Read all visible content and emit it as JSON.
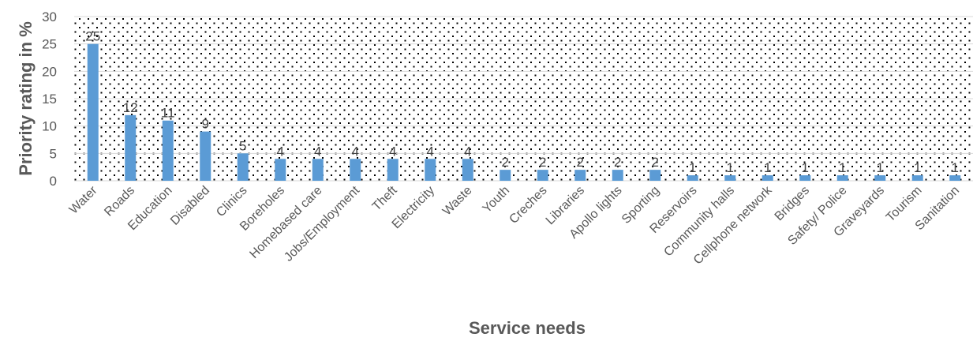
{
  "chart_data": {
    "type": "bar",
    "title": "",
    "xlabel": "Service needs",
    "ylabel": "Priority rating in %",
    "ylim": [
      0,
      30
    ],
    "yticks": [
      0,
      5,
      10,
      15,
      20,
      25,
      30
    ],
    "grid": true,
    "legend": "none",
    "bar_color": "#5b9bd5",
    "categories": [
      "Water",
      "Roads",
      "Education",
      "Disabled",
      "Clinics",
      "Boreholes",
      "Homebased care",
      "Jobs/Employment",
      "Theft",
      "Electricity",
      "Waste",
      "Youth",
      "Creches",
      "Libraries",
      "Apollo lights",
      "Sporting",
      "Reservoirs",
      "Community halls",
      "Cellphone network",
      "Bridges",
      "Safety/ Police",
      "Graveyards",
      "Tourism",
      "Sanitation"
    ],
    "values": [
      25,
      12,
      11,
      9,
      5,
      4,
      4,
      4,
      4,
      4,
      4,
      2,
      2,
      2,
      2,
      2,
      1,
      1,
      1,
      1,
      1,
      1,
      1,
      1
    ]
  }
}
